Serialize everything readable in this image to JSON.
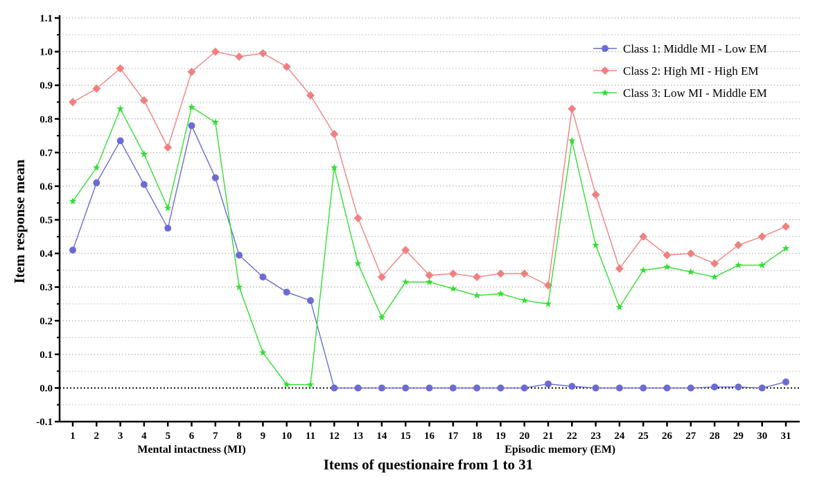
{
  "chart_data": {
    "type": "line",
    "xlabel": "Items of questionaire from 1 to 31",
    "ylabel": "Item response mean",
    "ylim": [
      -0.1,
      1.1
    ],
    "yticks": [
      -0.1,
      0.0,
      0.1,
      0.2,
      0.3,
      0.4,
      0.5,
      0.6,
      0.7,
      0.8,
      0.9,
      1.0,
      1.1
    ],
    "ytick_labels": [
      "-0.1",
      "0.0",
      "0.1",
      "0.2",
      "0.3",
      "0.4",
      "0.5",
      "0.6",
      "0.7",
      "0.8",
      "0.9",
      "1.0",
      "1.1"
    ],
    "x": [
      1,
      2,
      3,
      4,
      5,
      6,
      7,
      8,
      9,
      10,
      11,
      12,
      13,
      14,
      15,
      16,
      17,
      18,
      19,
      20,
      21,
      22,
      23,
      24,
      25,
      26,
      27,
      28,
      29,
      30,
      31
    ],
    "xtick_labels": [
      "1",
      "2",
      "3",
      "4",
      "5",
      "6",
      "7",
      "8",
      "9",
      "10",
      "11",
      "12",
      "13",
      "14",
      "15",
      "16",
      "17",
      "18",
      "19",
      "20",
      "21",
      "22",
      "23",
      "24",
      "25",
      "26",
      "27",
      "28",
      "29",
      "30",
      "31"
    ],
    "groups": [
      {
        "label": "Mental intactness (MI)",
        "from": 1,
        "to": 11
      },
      {
        "label": "Episodic memory (EM)",
        "from": 12,
        "to": 31
      }
    ],
    "grid": "horizontal dotted",
    "legend_position": "top-right",
    "series": [
      {
        "name": "Class 1: Middle MI - Low EM",
        "color": "#6b6bd6",
        "marker": "circle",
        "values": [
          0.41,
          0.61,
          0.735,
          0.605,
          0.475,
          0.78,
          0.625,
          0.395,
          0.33,
          0.285,
          0.26,
          0.0,
          0.0,
          0.0,
          0.0,
          0.0,
          0.0,
          0.0,
          0.0,
          0.0,
          0.012,
          0.005,
          0.0,
          0.0,
          0.0,
          0.0,
          0.0,
          0.003,
          0.003,
          0.0,
          0.018
        ]
      },
      {
        "name": "Class 2: High MI - High EM",
        "color": "#f08080",
        "marker": "diamond",
        "values": [
          0.85,
          0.89,
          0.95,
          0.855,
          0.715,
          0.94,
          1.0,
          0.985,
          0.995,
          0.955,
          0.87,
          0.755,
          0.505,
          0.33,
          0.41,
          0.335,
          0.34,
          0.33,
          0.34,
          0.34,
          0.305,
          0.83,
          0.575,
          0.355,
          0.45,
          0.395,
          0.4,
          0.37,
          0.425,
          0.45,
          0.48
        ]
      },
      {
        "name": "Class 3: Low MI - Middle EM",
        "color": "#33dd33",
        "marker": "star",
        "values": [
          0.555,
          0.655,
          0.83,
          0.695,
          0.535,
          0.835,
          0.79,
          0.3,
          0.105,
          0.01,
          0.01,
          0.655,
          0.37,
          0.21,
          0.315,
          0.315,
          0.295,
          0.275,
          0.28,
          0.26,
          0.25,
          0.735,
          0.425,
          0.24,
          0.35,
          0.36,
          0.345,
          0.33,
          0.365,
          0.365,
          0.415
        ]
      }
    ]
  }
}
